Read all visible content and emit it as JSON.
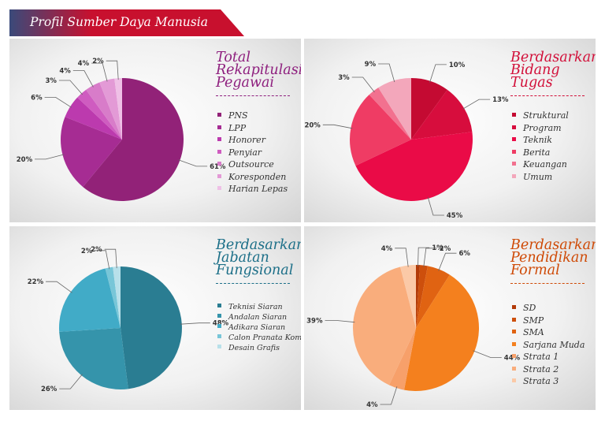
{
  "header": {
    "title": "Profil Sumber Daya Manusia",
    "accent": "#c8102e",
    "dark": "#3a4a7a"
  },
  "chart_data": [
    {
      "type": "pie",
      "title_lines": [
        "Total",
        "Rekapitulasi",
        "Pegawai"
      ],
      "title_color": "#8e1f7e",
      "categories": [
        "PNS",
        "LPP",
        "Honorer",
        "Penyiar",
        "Outsource",
        "Koresponden",
        "Harian Lepas"
      ],
      "values": [
        61,
        20,
        6,
        3,
        4,
        4,
        2
      ],
      "labels": [
        "61%",
        "20%",
        "6%",
        "3%",
        "4%",
        "4%",
        "2%"
      ],
      "colors": [
        "#922278",
        "#a62c93",
        "#bc3aae",
        "#cf5cc0",
        "#d87cc9",
        "#e39ad6",
        "#efc0e6"
      ],
      "legend_placement": "right"
    },
    {
      "type": "pie",
      "title_lines": [
        "Berdasarkan",
        "Bidang",
        "Tugas"
      ],
      "title_color": "#d2103a",
      "categories": [
        "Struktural",
        "Program",
        "Teknik",
        "Berita",
        "Keuangan",
        "Umum"
      ],
      "values": [
        10,
        13,
        45,
        20,
        3,
        9
      ],
      "labels": [
        "10%",
        "13%",
        "45%",
        "20%",
        "3%",
        "9%"
      ],
      "colors": [
        "#c40a32",
        "#d70d3d",
        "#ea0b47",
        "#ef3c64",
        "#f2718f",
        "#f3a7bb"
      ],
      "legend_placement": "right"
    },
    {
      "type": "pie",
      "title_lines": [
        "Berdasarkan",
        "Jabatan",
        "Fungsional"
      ],
      "title_color": "#1c6f88",
      "categories": [
        "Teknisi Siaran",
        "Andalan Siaran",
        "Adikara Siaran",
        "Calon Pranata Komp.",
        "Desain Grafis"
      ],
      "values": [
        48,
        26,
        22,
        2,
        2
      ],
      "labels": [
        "48%",
        "26%",
        "22%",
        "2%",
        "2%"
      ],
      "colors": [
        "#2a7d92",
        "#3594ab",
        "#41abc7",
        "#78c6d8",
        "#b8e0ea"
      ],
      "legend_placement": "right"
    },
    {
      "type": "pie",
      "title_lines": [
        "Berdasarkan",
        "Pendidikan",
        "Formal"
      ],
      "title_color": "#cf4a06",
      "categories": [
        "SD",
        "SMP",
        "SMA",
        "Sarjana Muda",
        "Strata 1",
        "Strata 2",
        "Strata 3"
      ],
      "values": [
        1,
        2,
        6,
        44,
        4,
        39,
        4
      ],
      "labels": [
        "1%",
        "2%",
        "6%",
        "44%",
        "4%",
        "39%",
        "4%"
      ],
      "colors": [
        "#b23a08",
        "#cd4f0c",
        "#e06312",
        "#f4801e",
        "#f7a06a",
        "#f9ad7c",
        "#fbc9a7"
      ],
      "legend_placement": "right"
    }
  ]
}
